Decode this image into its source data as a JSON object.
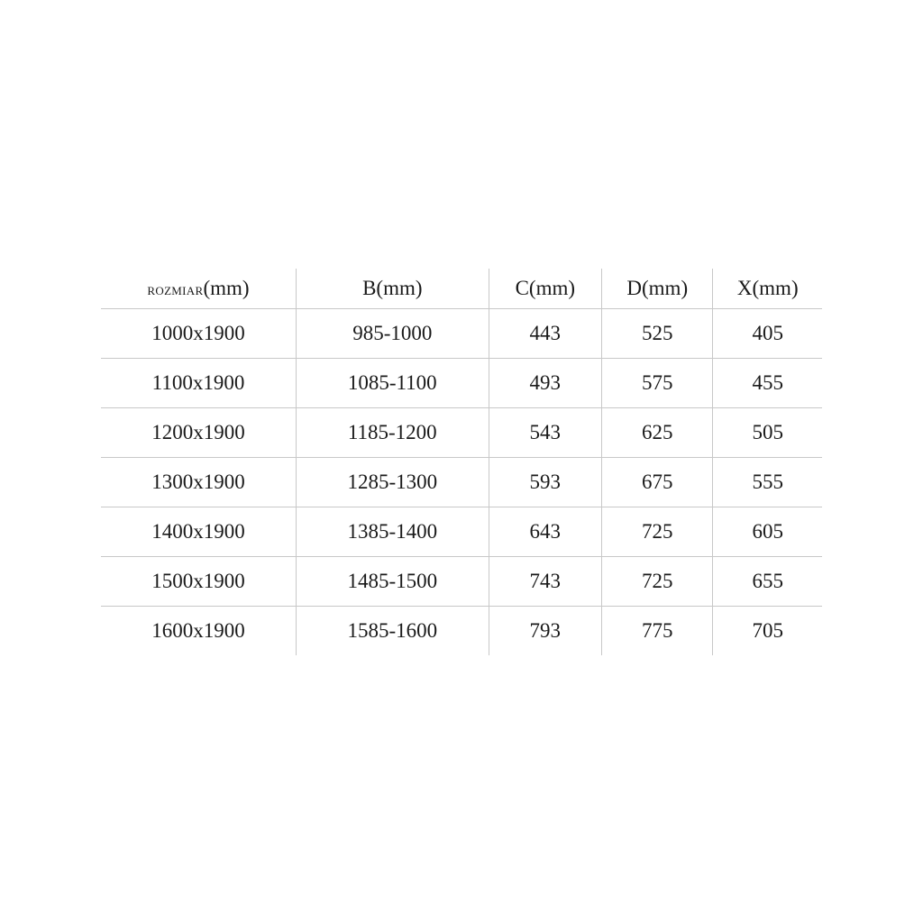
{
  "table": {
    "headers": [
      {
        "prefix": "ROZMIAR",
        "unit": "(mm)"
      },
      {
        "prefix": "B",
        "unit": "(mm)"
      },
      {
        "prefix": "C",
        "unit": "(mm)"
      },
      {
        "prefix": "D",
        "unit": "(mm)"
      },
      {
        "prefix": "X",
        "unit": "(mm)"
      }
    ],
    "rows": [
      [
        "1000x1900",
        "985-1000",
        "443",
        "525",
        "405"
      ],
      [
        "1100x1900",
        "1085-1100",
        "493",
        "575",
        "455"
      ],
      [
        "1200x1900",
        "1185-1200",
        "543",
        "625",
        "505"
      ],
      [
        "1300x1900",
        "1285-1300",
        "593",
        "675",
        "555"
      ],
      [
        "1400x1900",
        "1385-1400",
        "643",
        "725",
        "605"
      ],
      [
        "1500x1900",
        "1485-1500",
        "743",
        "725",
        "655"
      ],
      [
        "1600x1900",
        "1585-1600",
        "793",
        "775",
        "705"
      ]
    ]
  }
}
